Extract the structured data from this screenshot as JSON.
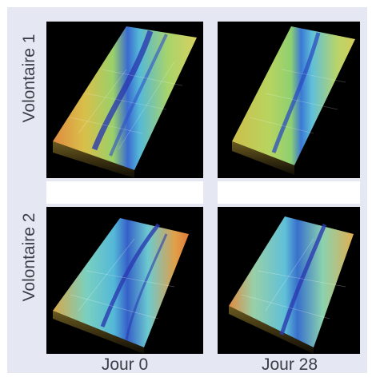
{
  "row_labels": [
    "Volontaire 1",
    "Volontaire 2"
  ],
  "column_labels": [
    "Jour 0",
    "Jour 28"
  ],
  "panels": [
    {
      "row": "Volontaire 1",
      "column": "Jour 0",
      "icon": "skin-topography-3d"
    },
    {
      "row": "Volontaire 1",
      "column": "Jour 28",
      "icon": "skin-topography-3d"
    },
    {
      "row": "Volontaire 2",
      "column": "Jour 0",
      "icon": "skin-topography-3d"
    },
    {
      "row": "Volontaire 2",
      "column": "Jour 28",
      "icon": "skin-topography-3d"
    }
  ],
  "colors": {
    "background": "#e5e8f2",
    "label_text": "#3b3e47",
    "panel_bg": "#000000"
  }
}
